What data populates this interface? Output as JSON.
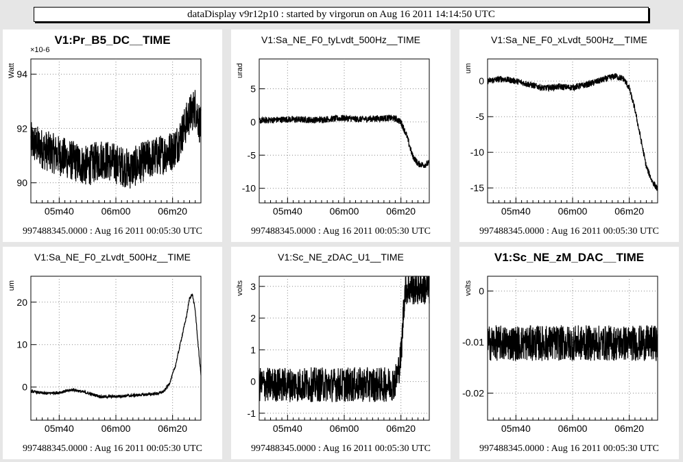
{
  "window_title": "dataDisplay v9r12p10 : started by virgorun on Aug 16 2011 14:14:50 UTC",
  "footer": "997488345.0000 : Aug 16 2011 00:05:30 UTC",
  "x_ticks": [
    "05m40",
    "06m00",
    "06m20"
  ],
  "chart_data": [
    {
      "type": "line",
      "title": "V1:Pr_B5_DC__TIME",
      "ylabel": "Watt",
      "y_exponent": "×10^-6",
      "yticks": [
        {
          "v": 90,
          "label": "90"
        },
        {
          "v": 92,
          "label": "92"
        },
        {
          "v": 94,
          "label": "94"
        }
      ],
      "ylim": [
        89.26,
        94.56
      ],
      "x_range_s": [
        330,
        390
      ],
      "series": [
        {
          "x": [
            330,
            335,
            340,
            345,
            350,
            355,
            360,
            365,
            370,
            375,
            380,
            382,
            384,
            386,
            388,
            390
          ],
          "y": [
            91.5,
            91.2,
            91.0,
            90.8,
            90.6,
            90.9,
            90.7,
            90.5,
            90.8,
            91.0,
            91.2,
            91.5,
            92.0,
            92.5,
            92.8,
            92.0
          ]
        }
      ],
      "noise": 0.75
    },
    {
      "type": "line",
      "title": "V1:Sa_NE_F0_tyLvdt_500Hz__TIME",
      "ylabel": "urad",
      "yticks": [
        {
          "v": -10,
          "label": "-10"
        },
        {
          "v": -5,
          "label": "-5"
        },
        {
          "v": 0,
          "label": "0"
        },
        {
          "v": 5,
          "label": "5"
        }
      ],
      "ylim": [
        -12.2,
        9.5
      ],
      "x_range_s": [
        330,
        390
      ],
      "series": [
        {
          "x": [
            330,
            340,
            350,
            360,
            365,
            370,
            376,
            378,
            380,
            382,
            384,
            386,
            388,
            390
          ],
          "y": [
            0.2,
            0.4,
            0.3,
            0.6,
            0.4,
            0.5,
            0.6,
            0.5,
            0,
            -2,
            -5,
            -6.3,
            -6.5,
            -6.2
          ]
        }
      ],
      "noise": 0.5
    },
    {
      "type": "line",
      "title": "V1:Sa_NE_F0_xLvdt_500Hz__TIME",
      "ylabel": "um",
      "yticks": [
        {
          "v": -15,
          "label": "-15"
        },
        {
          "v": -10,
          "label": "-10"
        },
        {
          "v": -5,
          "label": "-5"
        },
        {
          "v": 0,
          "label": "0"
        }
      ],
      "ylim": [
        -17.1,
        3.1
      ],
      "x_range_s": [
        330,
        390
      ],
      "series": [
        {
          "x": [
            330,
            335,
            340,
            345,
            350,
            355,
            360,
            365,
            370,
            375,
            378,
            380,
            382,
            384,
            386,
            388,
            390
          ],
          "y": [
            0,
            0.3,
            0,
            -0.5,
            -1,
            -0.8,
            -0.9,
            -0.5,
            0.1,
            0.7,
            0.3,
            -1,
            -4,
            -8,
            -12,
            -14,
            -15.2
          ]
        }
      ],
      "noise": 0.45
    },
    {
      "type": "line",
      "title": "V1:Sa_NE_F0_zLvdt_500Hz__TIME",
      "ylabel": "um",
      "yticks": [
        {
          "v": 0,
          "label": "0"
        },
        {
          "v": 10,
          "label": "10"
        },
        {
          "v": 20,
          "label": "20"
        }
      ],
      "ylim": [
        -7.8,
        26.1
      ],
      "x_range_s": [
        330,
        390
      ],
      "series": [
        {
          "x": [
            330,
            335,
            340,
            345,
            350,
            355,
            360,
            365,
            370,
            375,
            377,
            379,
            381,
            383,
            385,
            386,
            387,
            388,
            389,
            390
          ],
          "y": [
            -1,
            -1.5,
            -1.3,
            -0.6,
            -1.4,
            -2.3,
            -2.2,
            -2.0,
            -1.8,
            -1.5,
            -1,
            1,
            5,
            11,
            17,
            21,
            21.8,
            18,
            10,
            3
          ]
        }
      ],
      "noise": 0.35
    },
    {
      "type": "line",
      "title": "V1:Sc_NE_zDAC_U1__TIME",
      "ylabel": "volts",
      "yticks": [
        {
          "v": -1,
          "label": "-1"
        },
        {
          "v": 0,
          "label": "0"
        },
        {
          "v": 1,
          "label": "1"
        },
        {
          "v": 2,
          "label": "2"
        },
        {
          "v": 3,
          "label": "3"
        }
      ],
      "ylim": [
        -1.22,
        3.32
      ],
      "x_range_s": [
        330,
        390
      ],
      "series": [
        {
          "x": [
            330,
            340,
            350,
            360,
            370,
            375,
            377,
            378,
            379,
            380,
            380.5,
            381,
            381.5,
            382,
            390
          ],
          "y": [
            -0.1,
            -0.1,
            -0.1,
            -0.1,
            -0.1,
            -0.1,
            -0.05,
            0,
            0.3,
            0.8,
            1.5,
            2.4,
            2.95,
            2.95,
            2.95
          ]
        }
      ],
      "noise": 0.55
    },
    {
      "type": "line",
      "title": "V1:Sc_NE_zM_DAC__TIME",
      "ylabel": "volts",
      "yticks": [
        {
          "v": -0.02,
          "label": "-0.02"
        },
        {
          "v": -0.01,
          "label": "-0.01"
        },
        {
          "v": 0,
          "label": "0"
        }
      ],
      "ylim": [
        -0.0253,
        0.0029
      ],
      "x_range_s": [
        330,
        390
      ],
      "series": [
        {
          "x": [
            330,
            390
          ],
          "y": [
            -0.0102,
            -0.0102
          ]
        }
      ],
      "noise": 0.0035
    }
  ]
}
